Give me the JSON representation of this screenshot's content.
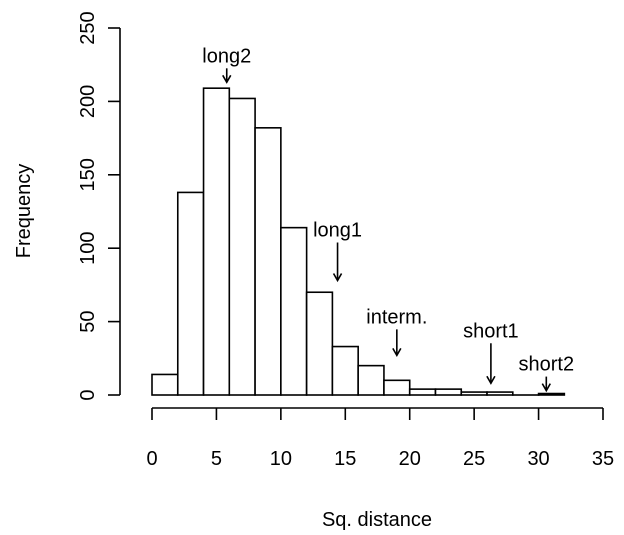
{
  "chart_data": {
    "type": "bar",
    "xlabel": "Sq. distance",
    "ylabel": "Frequency",
    "xlim": [
      0,
      35
    ],
    "ylim": [
      0,
      250
    ],
    "x_ticks": [
      "0",
      "5",
      "10",
      "15",
      "20",
      "25",
      "30",
      "35"
    ],
    "y_ticks": [
      "0",
      "50",
      "100",
      "150",
      "200",
      "250"
    ],
    "bin_edges": [
      0,
      2,
      4,
      6,
      8,
      10,
      12,
      14,
      16,
      18,
      20,
      22,
      24,
      26,
      28,
      30,
      32
    ],
    "values": [
      14,
      138,
      209,
      202,
      182,
      114,
      70,
      33,
      20,
      10,
      4,
      4,
      2,
      2,
      0,
      1
    ],
    "annotations": [
      {
        "label": "long2",
        "x": 5.8,
        "y_top": 213
      },
      {
        "label": "long1",
        "x": 14.4,
        "y_top": 78
      },
      {
        "label": "interm.",
        "x": 19.0,
        "y_top": 27
      },
      {
        "label": "short1",
        "x": 26.3,
        "y_top": 8
      },
      {
        "label": "short2",
        "x": 30.6,
        "y_top": 3
      }
    ]
  }
}
